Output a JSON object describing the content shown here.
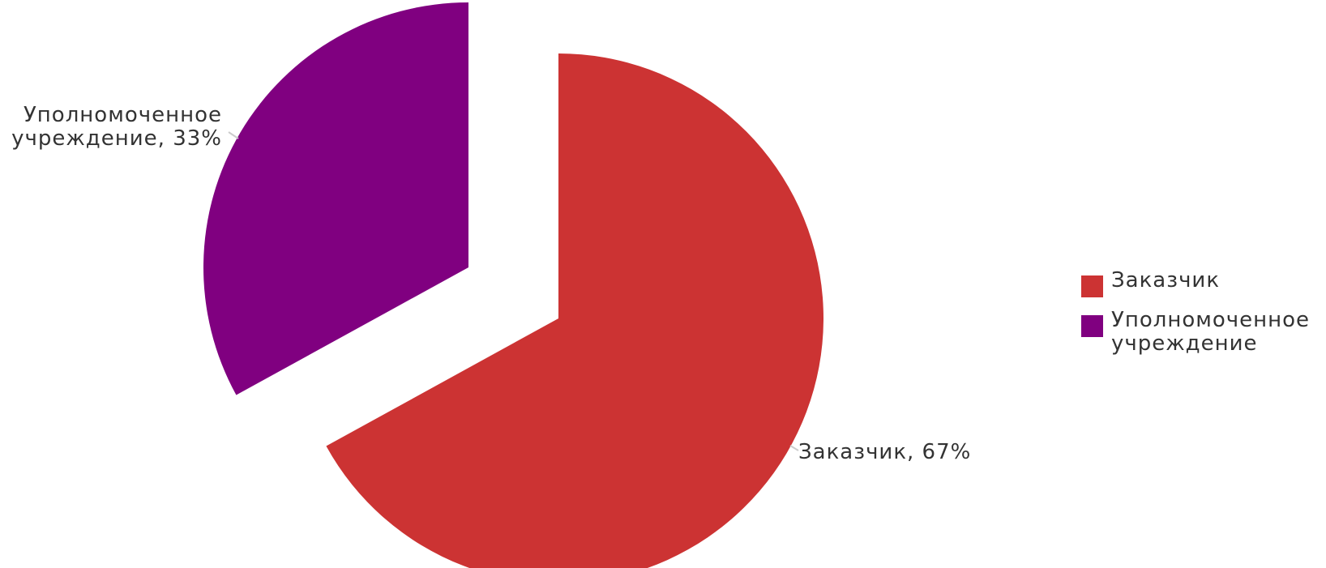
{
  "chart_data": {
    "type": "pie",
    "exploded": true,
    "slices": [
      {
        "name": "Заказчик",
        "value": 67,
        "color": "#cc3333",
        "label": "Заказчик, 67%"
      },
      {
        "name": "Уполномоченное\nучреждение",
        "value": 33,
        "color": "#800080",
        "label": "Уполномоченное\nучреждение, 33%"
      }
    ],
    "legend": {
      "placement": "right",
      "items": [
        {
          "label": "Заказчик",
          "color": "#cc3333"
        },
        {
          "label": "Уполномоченное\nучреждение",
          "color": "#800080"
        }
      ]
    }
  }
}
